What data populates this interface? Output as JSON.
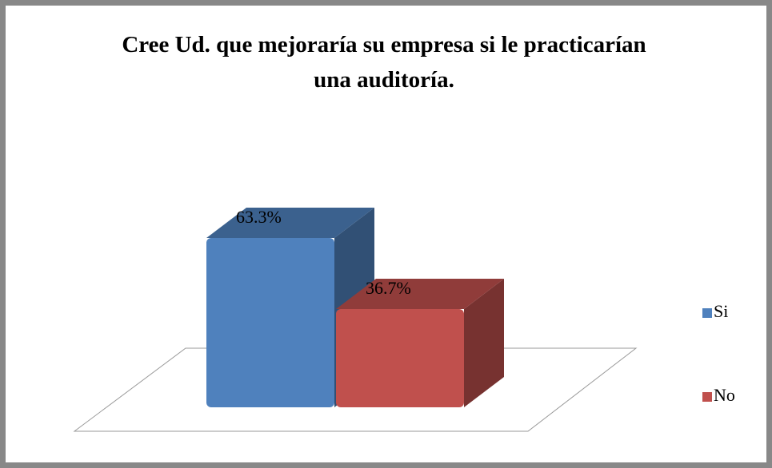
{
  "chart_data": {
    "type": "bar",
    "title": "Cree Ud. que mejoraría su empresa si le practicarían una auditoría.",
    "categories": [
      null
    ],
    "series": [
      {
        "name": "Si",
        "color": "#4f81bd",
        "values": [
          63.3
        ],
        "value_labels": [
          "63.3%"
        ]
      },
      {
        "name": "No",
        "color": "#c0504d",
        "values": [
          36.7
        ],
        "value_labels": [
          "36.7%"
        ]
      }
    ],
    "legend": "right"
  }
}
